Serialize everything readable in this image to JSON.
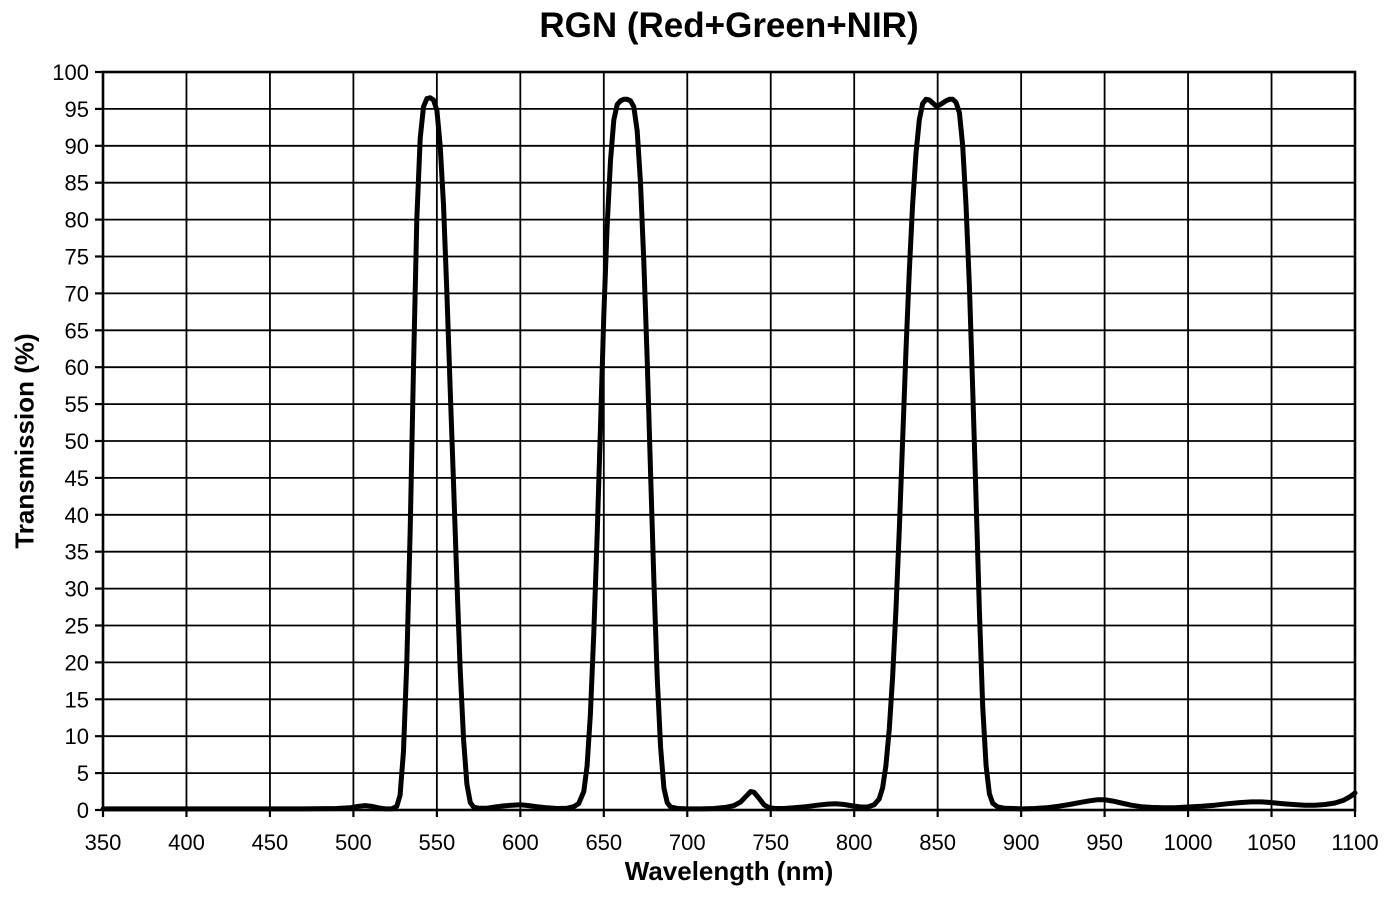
{
  "chart_data": {
    "type": "line",
    "title": "RGN (Red+Green+NIR)",
    "xlabel": "Wavelength (nm)",
    "ylabel": "Transmission (%)",
    "xlim": [
      350,
      1100
    ],
    "ylim": [
      0,
      100
    ],
    "xticks": [
      350,
      400,
      450,
      500,
      550,
      600,
      650,
      700,
      750,
      800,
      850,
      900,
      950,
      1000,
      1050,
      1100
    ],
    "yticks": [
      0,
      5,
      10,
      15,
      20,
      25,
      30,
      35,
      40,
      45,
      50,
      55,
      60,
      65,
      70,
      75,
      80,
      85,
      90,
      95,
      100
    ],
    "grid": true,
    "legend_position": "none",
    "line_color": "#000000",
    "grid_color": "#000000",
    "background_color": "#ffffff",
    "series": [
      {
        "name": "transmission",
        "points": [
          [
            350,
            0.15
          ],
          [
            380,
            0.15
          ],
          [
            410,
            0.15
          ],
          [
            440,
            0.15
          ],
          [
            470,
            0.15
          ],
          [
            490,
            0.2
          ],
          [
            498,
            0.3
          ],
          [
            503,
            0.5
          ],
          [
            507,
            0.6
          ],
          [
            511,
            0.5
          ],
          [
            515,
            0.3
          ],
          [
            519,
            0.15
          ],
          [
            523,
            0.15
          ],
          [
            526,
            0.5
          ],
          [
            528,
            2
          ],
          [
            530,
            8
          ],
          [
            532,
            20
          ],
          [
            534,
            38
          ],
          [
            536,
            60
          ],
          [
            538,
            80
          ],
          [
            540,
            91
          ],
          [
            542,
            95.3
          ],
          [
            544,
            96.4
          ],
          [
            546,
            96.5
          ],
          [
            548,
            96.2
          ],
          [
            550,
            94.8
          ],
          [
            552,
            90
          ],
          [
            554,
            82
          ],
          [
            556,
            70
          ],
          [
            558,
            57
          ],
          [
            560,
            44
          ],
          [
            562,
            31
          ],
          [
            564,
            19
          ],
          [
            566,
            9.5
          ],
          [
            568,
            3.5
          ],
          [
            570,
            1
          ],
          [
            572,
            0.4
          ],
          [
            575,
            0.25
          ],
          [
            580,
            0.25
          ],
          [
            585,
            0.4
          ],
          [
            590,
            0.55
          ],
          [
            595,
            0.65
          ],
          [
            600,
            0.7
          ],
          [
            605,
            0.6
          ],
          [
            610,
            0.45
          ],
          [
            616,
            0.3
          ],
          [
            622,
            0.2
          ],
          [
            628,
            0.25
          ],
          [
            632,
            0.45
          ],
          [
            635,
            0.9
          ],
          [
            638,
            2.5
          ],
          [
            640,
            6
          ],
          [
            642,
            13
          ],
          [
            644,
            24
          ],
          [
            646,
            37
          ],
          [
            648,
            52
          ],
          [
            650,
            67
          ],
          [
            652,
            79
          ],
          [
            654,
            88
          ],
          [
            656,
            93.5
          ],
          [
            658,
            95.6
          ],
          [
            660,
            96.1
          ],
          [
            662,
            96.3
          ],
          [
            664,
            96.3
          ],
          [
            666,
            96.1
          ],
          [
            668,
            95.3
          ],
          [
            670,
            92
          ],
          [
            672,
            85
          ],
          [
            674,
            74
          ],
          [
            676,
            61
          ],
          [
            678,
            46
          ],
          [
            680,
            31
          ],
          [
            682,
            18
          ],
          [
            684,
            8.5
          ],
          [
            686,
            3
          ],
          [
            688,
            1
          ],
          [
            690,
            0.4
          ],
          [
            694,
            0.2
          ],
          [
            700,
            0.15
          ],
          [
            708,
            0.15
          ],
          [
            716,
            0.2
          ],
          [
            723,
            0.35
          ],
          [
            728,
            0.6
          ],
          [
            732,
            1.1
          ],
          [
            735,
            1.8
          ],
          [
            738,
            2.5
          ],
          [
            740,
            2.4
          ],
          [
            743,
            1.6
          ],
          [
            746,
            0.7
          ],
          [
            749,
            0.3
          ],
          [
            753,
            0.2
          ],
          [
            758,
            0.2
          ],
          [
            764,
            0.3
          ],
          [
            771,
            0.45
          ],
          [
            778,
            0.65
          ],
          [
            784,
            0.8
          ],
          [
            789,
            0.85
          ],
          [
            794,
            0.75
          ],
          [
            799,
            0.55
          ],
          [
            804,
            0.4
          ],
          [
            808,
            0.4
          ],
          [
            812,
            0.7
          ],
          [
            815,
            1.5
          ],
          [
            817,
            3
          ],
          [
            819,
            6
          ],
          [
            821,
            11
          ],
          [
            823,
            18
          ],
          [
            825,
            27
          ],
          [
            827,
            38
          ],
          [
            829,
            50
          ],
          [
            831,
            62
          ],
          [
            833,
            73
          ],
          [
            835,
            82
          ],
          [
            837,
            89
          ],
          [
            839,
            93.5
          ],
          [
            841,
            95.7
          ],
          [
            843,
            96.3
          ],
          [
            845,
            96.2
          ],
          [
            847,
            95.8
          ],
          [
            849,
            95.4
          ],
          [
            851,
            95.5
          ],
          [
            853,
            95.8
          ],
          [
            855,
            96.1
          ],
          [
            857,
            96.3
          ],
          [
            859,
            96.3
          ],
          [
            861,
            95.9
          ],
          [
            863,
            94.5
          ],
          [
            865,
            90
          ],
          [
            867,
            82
          ],
          [
            869,
            71
          ],
          [
            871,
            57
          ],
          [
            873,
            42
          ],
          [
            875,
            27
          ],
          [
            877,
            14
          ],
          [
            879,
            6
          ],
          [
            881,
            2.2
          ],
          [
            883,
            0.9
          ],
          [
            886,
            0.4
          ],
          [
            890,
            0.25
          ],
          [
            895,
            0.2
          ],
          [
            901,
            0.15
          ],
          [
            908,
            0.2
          ],
          [
            915,
            0.3
          ],
          [
            922,
            0.5
          ],
          [
            929,
            0.75
          ],
          [
            935,
            1
          ],
          [
            941,
            1.25
          ],
          [
            946,
            1.4
          ],
          [
            950,
            1.4
          ],
          [
            955,
            1.2
          ],
          [
            960,
            0.95
          ],
          [
            966,
            0.65
          ],
          [
            972,
            0.45
          ],
          [
            978,
            0.35
          ],
          [
            985,
            0.3
          ],
          [
            992,
            0.3
          ],
          [
            1000,
            0.4
          ],
          [
            1008,
            0.5
          ],
          [
            1016,
            0.65
          ],
          [
            1024,
            0.85
          ],
          [
            1031,
            1
          ],
          [
            1038,
            1.1
          ],
          [
            1044,
            1.1
          ],
          [
            1050,
            1
          ],
          [
            1057,
            0.85
          ],
          [
            1063,
            0.75
          ],
          [
            1070,
            0.65
          ],
          [
            1076,
            0.65
          ],
          [
            1082,
            0.75
          ],
          [
            1088,
            0.95
          ],
          [
            1093,
            1.3
          ],
          [
            1097,
            1.8
          ],
          [
            1100,
            2.3
          ]
        ]
      }
    ]
  }
}
